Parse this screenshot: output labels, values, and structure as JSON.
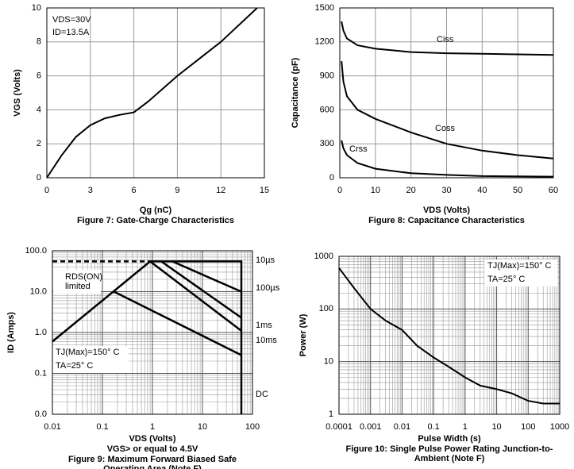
{
  "chart_data": [
    {
      "type": "line",
      "title": [
        "Figure 7: Gate-Charge Characteristics"
      ],
      "xlabel": "Qg (nC)",
      "ylabel": "VGS (Volts)",
      "annotations": [
        "VDS=30V",
        "ID=13.5A"
      ],
      "xlim": [
        0,
        15
      ],
      "xticks": [
        0,
        3,
        6,
        9,
        12,
        15
      ],
      "ylim": [
        0,
        10
      ],
      "yticks": [
        0,
        2,
        4,
        6,
        8,
        10
      ],
      "grid": true,
      "log": false,
      "series": [
        {
          "color": "#000000",
          "x": [
            0,
            1,
            2,
            3,
            4,
            5,
            6,
            7,
            9,
            12,
            14.5
          ],
          "values": [
            0,
            1.3,
            2.4,
            3.1,
            3.5,
            3.7,
            3.85,
            4.5,
            6,
            8,
            10
          ]
        }
      ]
    },
    {
      "type": "line",
      "title": [
        "Figure 8: Capacitance Characteristics"
      ],
      "xlabel": "VDS (Volts)",
      "ylabel": "Capacitance (pF)",
      "annotations": [],
      "xlim": [
        0,
        60
      ],
      "xticks": [
        0,
        10,
        20,
        30,
        40,
        50,
        60
      ],
      "ylim": [
        0,
        1500
      ],
      "yticks": [
        0,
        300,
        600,
        900,
        1200,
        1500
      ],
      "grid": true,
      "log": false,
      "series": [
        {
          "name": "Ciss",
          "color": "#000000",
          "x": [
            0.5,
            1,
            2,
            5,
            10,
            20,
            30,
            40,
            50,
            60
          ],
          "values": [
            1380,
            1300,
            1230,
            1170,
            1140,
            1110,
            1100,
            1095,
            1090,
            1085
          ]
        },
        {
          "name": "Coss",
          "color": "#000000",
          "x": [
            0.5,
            1,
            2,
            5,
            10,
            20,
            30,
            40,
            50,
            60
          ],
          "values": [
            1030,
            850,
            720,
            600,
            520,
            400,
            300,
            240,
            200,
            170
          ]
        },
        {
          "name": "Crss",
          "color": "#000000",
          "x": [
            0.5,
            1,
            2,
            5,
            10,
            20,
            30,
            40,
            50,
            60
          ],
          "values": [
            330,
            260,
            200,
            130,
            80,
            40,
            25,
            15,
            12,
            10
          ]
        }
      ]
    },
    {
      "type": "line",
      "title": [
        "Figure 9: Maximum Forward Biased Safe",
        "Operating Area (Note F)"
      ],
      "xlabel": "VDS (Volts)",
      "ylabel": "ID (Amps)",
      "annotations": [
        "RDS(ON)",
        "limited",
        "TJ(Max)=150° C",
        "TA=25° C",
        "VGS> or equal to 4.5V"
      ],
      "xlim": [
        0.01,
        100
      ],
      "xticks": [
        0.01,
        0.1,
        1,
        10,
        100
      ],
      "ylim": [
        0.01,
        100
      ],
      "yticks": [
        {
          "value": 0.01,
          "label": "0.0"
        },
        0.1,
        {
          "value": 1,
          "label": "1.0"
        },
        {
          "value": 10,
          "label": "10.0"
        },
        {
          "value": 100,
          "label": "100.0"
        }
      ],
      "grid": true,
      "log": true,
      "series": [
        {
          "name": "10µs",
          "color": "#000000",
          "x": [
            0.01,
            0.9,
            60,
            60
          ],
          "values": [
            0.6,
            55,
            55,
            0.01
          ]
        },
        {
          "name": "100µs",
          "color": "#000000",
          "x": [
            2.5,
            60
          ],
          "values": [
            55,
            10
          ]
        },
        {
          "name": "1ms",
          "color": "#000000",
          "x": [
            1.5,
            60
          ],
          "values": [
            55,
            2.3
          ]
        },
        {
          "name": "10ms",
          "color": "#000000",
          "x": [
            0.9,
            60
          ],
          "values": [
            55,
            1.1
          ]
        },
        {
          "name": "DC",
          "color": "#000000",
          "x": [
            0.17,
            60
          ],
          "values": [
            10,
            0.28
          ]
        },
        {
          "color": "#000000",
          "dashed": true,
          "x": [
            0.01,
            0.9
          ],
          "values": [
            55,
            55
          ]
        }
      ]
    },
    {
      "type": "line",
      "title": [
        "Figure 10: Single Pulse Power Rating Junction-to-",
        "Ambient (Note F)"
      ],
      "xlabel": "Pulse Width (s)",
      "ylabel": "Power (W)",
      "annotations": [
        "TJ(Max)=150° C",
        "TA=25° C"
      ],
      "xlim": [
        0.0001,
        1000
      ],
      "xticks": [
        0.0001,
        0.001,
        0.01,
        0.1,
        1,
        10,
        100,
        1000
      ],
      "ylim": [
        1,
        1000
      ],
      "yticks": [
        1,
        10,
        100,
        1000
      ],
      "grid": true,
      "log": true,
      "series": [
        {
          "color": "#000000",
          "x": [
            0.0001,
            0.0003,
            0.001,
            0.003,
            0.01,
            0.03,
            0.1,
            0.3,
            1,
            3,
            10,
            30,
            100,
            300,
            1000
          ],
          "values": [
            600,
            250,
            100,
            60,
            40,
            20,
            12,
            8,
            5,
            3.5,
            3,
            2.5,
            1.8,
            1.6,
            1.6
          ]
        }
      ]
    }
  ]
}
